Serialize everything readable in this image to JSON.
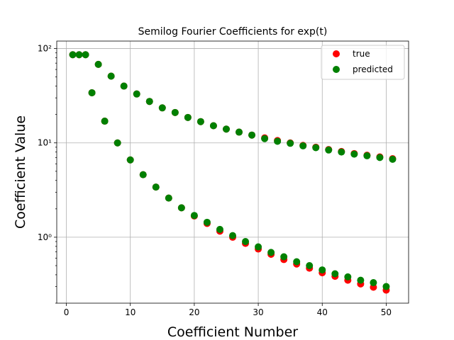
{
  "chart_data": {
    "type": "scatter",
    "title": "Semilog Fourier Coefficients for exp(t)",
    "xlabel": "Coefficient Number",
    "ylabel": "Coefficient Value",
    "xlim": [
      -1.5,
      53.5
    ],
    "ylim": [
      0.2,
      120
    ],
    "yscale": "log",
    "grid": true,
    "legend_position": "top-right",
    "x_ticks": [
      0,
      10,
      20,
      30,
      40,
      50
    ],
    "x_tick_labels": [
      "0",
      "10",
      "20",
      "30",
      "40",
      "50"
    ],
    "y_ticks": [
      1,
      10,
      100
    ],
    "y_tick_labels": [
      "10⁰",
      "10¹",
      "10²"
    ],
    "series": [
      {
        "name": "true",
        "color": "#ff0000",
        "x": [
          1,
          2,
          3,
          4,
          5,
          6,
          7,
          8,
          9,
          10,
          11,
          12,
          13,
          14,
          15,
          16,
          17,
          18,
          19,
          20,
          21,
          22,
          23,
          24,
          25,
          26,
          27,
          28,
          29,
          30,
          31,
          32,
          33,
          34,
          35,
          36,
          37,
          38,
          39,
          40,
          41,
          42,
          43,
          44,
          45,
          46,
          47,
          48,
          49,
          50,
          51
        ],
        "y": [
          86,
          86,
          86,
          34,
          68,
          17,
          51,
          10,
          40,
          6.6,
          33,
          4.6,
          27.5,
          3.4,
          23.5,
          2.6,
          21,
          2.05,
          18.6,
          1.68,
          16.8,
          1.4,
          15.2,
          1.16,
          14.0,
          1.0,
          13.0,
          0.86,
          12.1,
          0.75,
          11.3,
          0.66,
          10.6,
          0.58,
          10.0,
          0.52,
          9.4,
          0.47,
          9.0,
          0.42,
          8.5,
          0.385,
          8.1,
          0.35,
          7.7,
          0.32,
          7.4,
          0.295,
          7.1,
          0.275,
          6.8
        ]
      },
      {
        "name": "predicted",
        "color": "#008000",
        "x": [
          1,
          2,
          3,
          4,
          5,
          6,
          7,
          8,
          9,
          10,
          11,
          12,
          13,
          14,
          15,
          16,
          17,
          18,
          19,
          20,
          21,
          22,
          23,
          24,
          25,
          26,
          27,
          28,
          29,
          30,
          31,
          32,
          33,
          34,
          35,
          36,
          37,
          38,
          39,
          40,
          41,
          42,
          43,
          44,
          45,
          46,
          47,
          48,
          49,
          50,
          51
        ],
        "y": [
          86,
          86,
          86,
          34,
          68,
          17,
          51,
          10,
          40,
          6.6,
          33,
          4.6,
          27.5,
          3.4,
          23.5,
          2.6,
          21,
          2.05,
          18.6,
          1.7,
          16.8,
          1.44,
          15.2,
          1.21,
          14.0,
          1.04,
          13.0,
          0.9,
          12.1,
          0.79,
          11.1,
          0.69,
          10.4,
          0.62,
          9.9,
          0.55,
          9.3,
          0.5,
          8.9,
          0.45,
          8.4,
          0.41,
          8.0,
          0.38,
          7.6,
          0.35,
          7.3,
          0.33,
          7.0,
          0.3,
          6.7
        ]
      }
    ]
  }
}
